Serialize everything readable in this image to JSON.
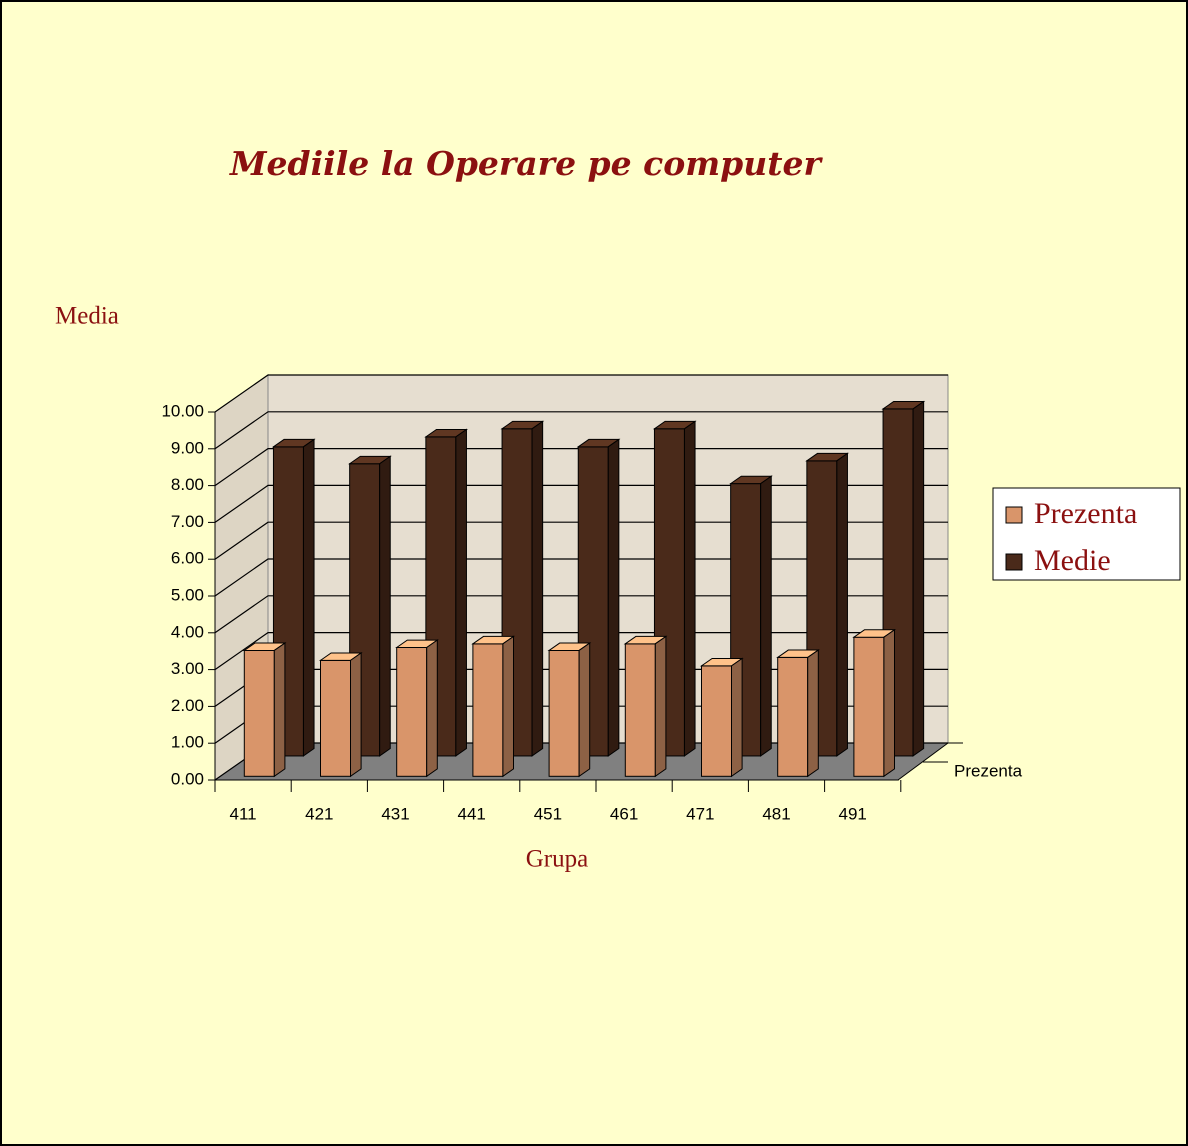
{
  "chart_data": {
    "type": "bar3d",
    "title": "Mediile la Operare pe computer",
    "y_label": "Media",
    "x_label": "Grupa",
    "categories": [
      "411",
      "421",
      "431",
      "441",
      "451",
      "461",
      "471",
      "481",
      "491"
    ],
    "series": [
      {
        "name": "Prezenta",
        "color": "#d9956a",
        "values": [
          3.42,
          3.15,
          3.5,
          3.6,
          3.42,
          3.6,
          3.0,
          3.23,
          3.78
        ]
      },
      {
        "name": "Medie",
        "color": "#4a2a1a",
        "values": [
          8.4,
          7.94,
          8.67,
          8.89,
          8.4,
          8.89,
          7.4,
          8.02,
          9.43
        ]
      }
    ],
    "ylim": [
      0,
      10
    ],
    "yticks": [
      {
        "value": 0,
        "label": "0.00"
      },
      {
        "value": 1,
        "label": "1.00"
      },
      {
        "value": 2,
        "label": "2.00"
      },
      {
        "value": 3,
        "label": "3.00"
      },
      {
        "value": 4,
        "label": "4.00"
      },
      {
        "value": 5,
        "label": "5.00"
      },
      {
        "value": 6,
        "label": "6.00"
      },
      {
        "value": 7,
        "label": "7.00"
      },
      {
        "value": 8,
        "label": "8.00"
      },
      {
        "value": 9,
        "label": "9.00"
      },
      {
        "value": 10,
        "label": "10.00"
      }
    ],
    "grid": true,
    "legend": "right"
  }
}
